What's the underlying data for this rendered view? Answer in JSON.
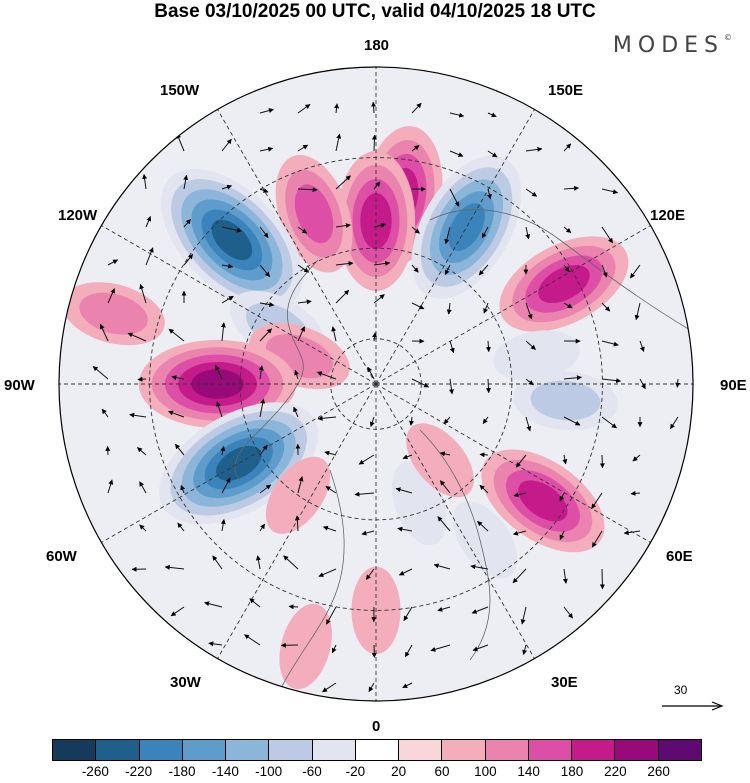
{
  "title": "Base 03/10/2025 00 UTC, valid 04/10/2025 18 UTC",
  "brand": "MODES",
  "brand_mark": "©",
  "lon_labels": {
    "n180": "180",
    "w150": "150W",
    "e150": "150E",
    "w120": "120W",
    "e120": "120E",
    "w90": "90W",
    "e90": "90E",
    "w60": "60W",
    "e60": "60E",
    "w30": "30W",
    "e30": "30E",
    "s0": "0"
  },
  "reference_vector": {
    "label": "30",
    "icon": "arrow-right-icon"
  },
  "colorbar": {
    "colors": [
      "#163a5c",
      "#1e5f8c",
      "#3a84bb",
      "#5d9ccb",
      "#8cb5da",
      "#bccbe3",
      "#e2e4f0",
      "#ffffff",
      "#f9d6d9",
      "#f3adbb",
      "#ea83ae",
      "#dd4ea6",
      "#c51b8a",
      "#980a7a",
      "#5e0a71"
    ],
    "ticks": [
      "-260",
      "-220",
      "-180",
      "-140",
      "-100",
      "-60",
      "-20",
      "20",
      "60",
      "100",
      "140",
      "180",
      "220",
      "260"
    ]
  },
  "anomalies": [
    {
      "lon": 172,
      "colat": 42,
      "value": 160
    },
    {
      "lon": 150,
      "colat": 40,
      "value": -230
    },
    {
      "lon": 118,
      "colat": 47,
      "value": 160
    },
    {
      "lon": 180,
      "colat": 36,
      "value": 180
    },
    {
      "lon": 200,
      "colat": 40,
      "value": 120
    },
    {
      "lon": 225,
      "colat": 45,
      "value": -250
    },
    {
      "lon": 240,
      "colat": 25,
      "value": -80
    },
    {
      "lon": 250,
      "colat": 18,
      "value": 80
    },
    {
      "lon": 255,
      "colat": 60,
      "value": 80
    },
    {
      "lon": 270,
      "colat": 35,
      "value": 230
    },
    {
      "lon": 300,
      "colat": 35,
      "value": -240
    },
    {
      "lon": 325,
      "colat": 30,
      "value": 60
    },
    {
      "lon": 20,
      "colat": 28,
      "value": -60
    },
    {
      "lon": 35,
      "colat": 42,
      "value": -70
    },
    {
      "lon": 55,
      "colat": 45,
      "value": 190
    },
    {
      "lon": 85,
      "colat": 42,
      "value": -100
    },
    {
      "lon": 100,
      "colat": 36,
      "value": -70
    },
    {
      "lon": 40,
      "colat": 22,
      "value": 40
    },
    {
      "lon": 0,
      "colat": 50,
      "value": 30
    },
    {
      "lon": 345,
      "colat": 60,
      "value": 40
    }
  ]
}
